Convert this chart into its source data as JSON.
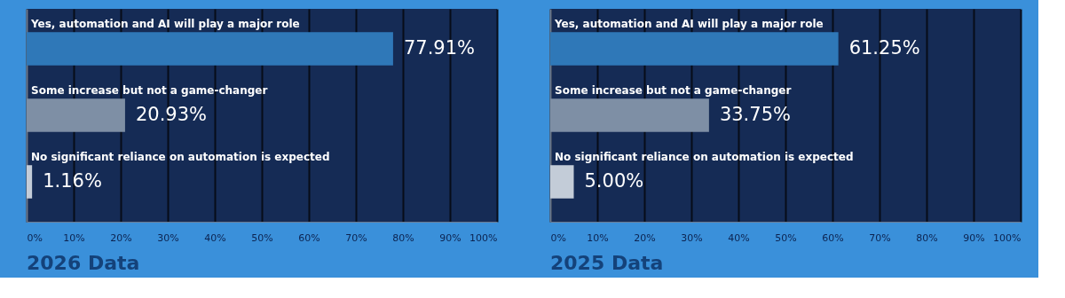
{
  "chart_data": [
    {
      "type": "bar",
      "orientation": "horizontal",
      "title": "2026 Data",
      "categories": [
        "Yes, automation and AI will play a major role",
        "Some increase but not a game-changer",
        "No significant reliance on automation is expected"
      ],
      "values": [
        77.91,
        20.93,
        1.16
      ],
      "colors": [
        "#2f78b8",
        "#7e8fa5",
        "#c3ccd8"
      ],
      "value_labels": [
        "77.91%",
        "20.93%",
        "1.16%"
      ],
      "xlim": [
        0,
        100
      ],
      "xticks": [
        {
          "value": 0,
          "label": "0%"
        },
        {
          "value": 10,
          "label": "10%"
        },
        {
          "value": 20,
          "label": "20%"
        },
        {
          "value": 30,
          "label": "30%"
        },
        {
          "value": 40,
          "label": "40%"
        },
        {
          "value": 50,
          "label": "50%"
        },
        {
          "value": 60,
          "label": "60%"
        },
        {
          "value": 70,
          "label": "70%"
        },
        {
          "value": 80,
          "label": "80%"
        },
        {
          "value": 90,
          "label": "90%"
        },
        {
          "value": 100,
          "label": "100%"
        }
      ],
      "grid": "x"
    },
    {
      "type": "bar",
      "orientation": "horizontal",
      "title": "2025 Data",
      "categories": [
        "Yes, automation and AI will play a major role",
        "Some increase but not a game-changer",
        "No significant reliance on automation is expected"
      ],
      "values": [
        61.25,
        33.75,
        5.0
      ],
      "colors": [
        "#2f78b8",
        "#7e8fa5",
        "#c3ccd8"
      ],
      "value_labels": [
        "61.25%",
        "33.75%",
        "5.00%"
      ],
      "xlim": [
        0,
        100
      ],
      "xticks": [
        {
          "value": 0,
          "label": "0%"
        },
        {
          "value": 10,
          "label": "10%"
        },
        {
          "value": 20,
          "label": "20%"
        },
        {
          "value": 30,
          "label": "30%"
        },
        {
          "value": 40,
          "label": "40%"
        },
        {
          "value": 50,
          "label": "50%"
        },
        {
          "value": 60,
          "label": "60%"
        },
        {
          "value": 70,
          "label": "70%"
        },
        {
          "value": 80,
          "label": "80%"
        },
        {
          "value": 90,
          "label": "90%"
        },
        {
          "value": 100,
          "label": "100%"
        }
      ],
      "grid": "x"
    }
  ]
}
